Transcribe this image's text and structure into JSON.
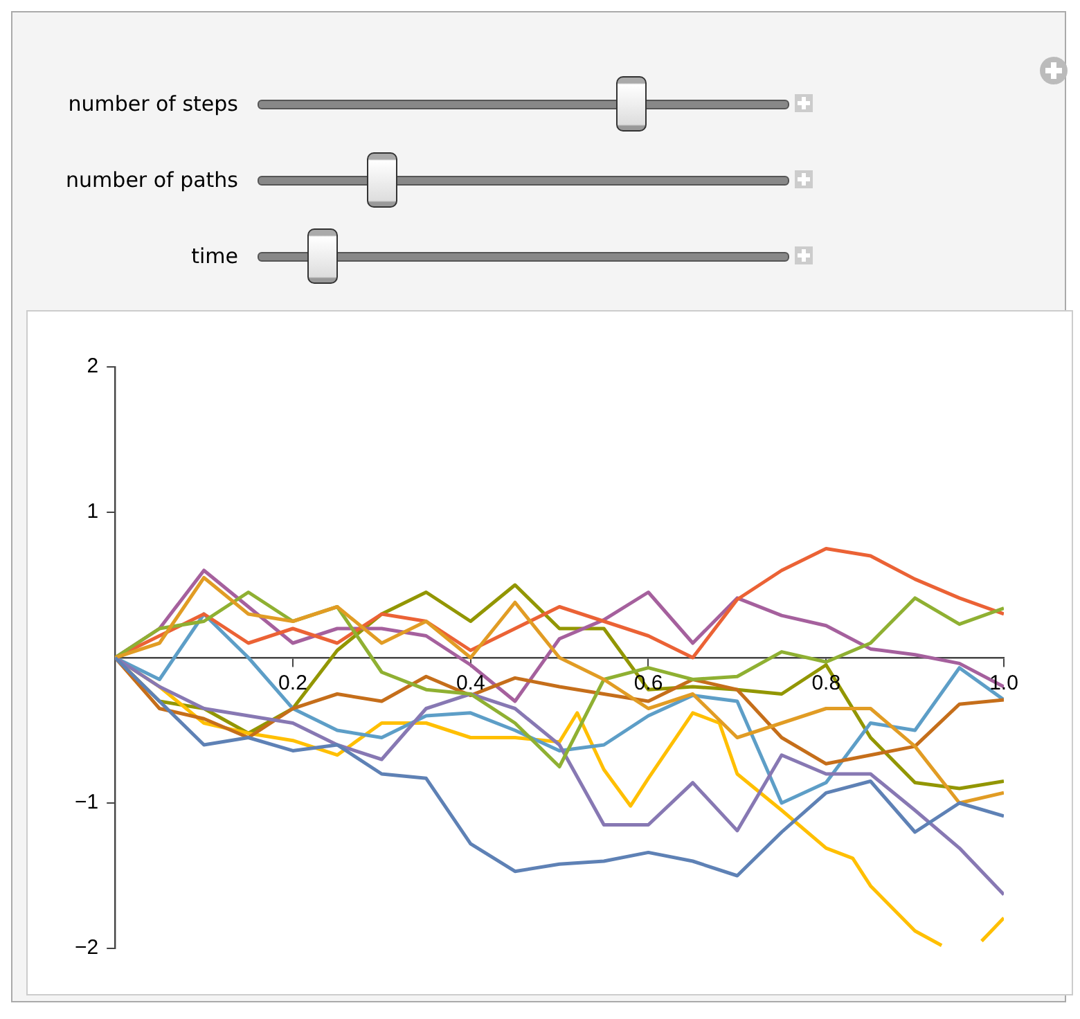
{
  "chart_data": {
    "type": "line",
    "annotations": [
      "number of steps",
      "number of paths",
      "time"
    ],
    "x": [
      0,
      0.05,
      0.1,
      0.15,
      0.2,
      0.25,
      0.3,
      0.35,
      0.4,
      0.45,
      0.5,
      0.55,
      0.6,
      0.65,
      0.7,
      0.75,
      0.8,
      0.85,
      0.9,
      0.95,
      1
    ],
    "xlim": [
      0,
      1
    ],
    "ylim": [
      -2,
      2
    ],
    "xticks": [
      0.2,
      0.4,
      0.6,
      0.8,
      {
        "value": 1,
        "label": "1.0"
      }
    ],
    "yticks": [
      {
        "value": -2,
        "label": "−2"
      },
      {
        "value": -1,
        "label": "−1"
      },
      1,
      2
    ],
    "grid": false,
    "legend": false,
    "series": [
      {
        "color": "#5e81b5",
        "values": [
          0,
          -0.3,
          -0.6,
          -0.55,
          -0.64,
          -0.6,
          -0.8,
          -0.83,
          -1.28,
          -1.47,
          -1.42,
          -1.4,
          -1.34,
          -1.4,
          -1.5,
          -1.2,
          -0.93,
          -0.85,
          -1.2,
          -1.0,
          -1.09
        ]
      },
      {
        "color": "#e19c24",
        "values": [
          0,
          0.1,
          0.55,
          0.3,
          0.25,
          0.35,
          0.1,
          0.25,
          0,
          0.38,
          0,
          -0.15,
          -0.35,
          -0.25,
          -0.55,
          -0.45,
          -0.35,
          -0.35,
          -0.61,
          -1.0,
          -0.93
        ]
      },
      {
        "color": "#8fb032",
        "values": [
          0,
          0.2,
          0.25,
          0.45,
          0.25,
          0.35,
          -0.1,
          -0.22,
          -0.25,
          -0.45,
          -0.75,
          -0.15,
          -0.07,
          -0.15,
          -0.13,
          0.04,
          -0.03,
          0.1,
          0.41,
          0.23,
          0.34
        ]
      },
      {
        "color": "#eb6235",
        "values": [
          0,
          0.15,
          0.3,
          0.1,
          0.2,
          0.1,
          0.3,
          0.25,
          0.05,
          0.2,
          0.35,
          0.25,
          0.15,
          0,
          0.4,
          0.6,
          0.75,
          0.7,
          0.54,
          0.41,
          0.3
        ]
      },
      {
        "color": "#8778b3",
        "values": [
          0,
          -0.2,
          -0.35,
          -0.4,
          -0.45,
          -0.6,
          -0.7,
          -0.35,
          -0.25,
          -0.35,
          -0.6,
          -1.15,
          -1.15,
          -0.86,
          -1.19,
          -0.67,
          -0.8,
          -0.8,
          -1.05,
          -1.31,
          -1.63
        ]
      },
      {
        "color": "#c56e1a",
        "values": [
          0,
          -0.35,
          -0.42,
          -0.55,
          -0.35,
          -0.25,
          -0.3,
          -0.13,
          -0.26,
          -0.14,
          -0.2,
          -0.25,
          -0.3,
          -0.15,
          -0.22,
          -0.55,
          -0.73,
          -0.67,
          -0.61,
          -0.32,
          -0.29
        ]
      },
      {
        "color": "#5d9ec7",
        "values": [
          0,
          -0.15,
          0.3,
          0,
          -0.35,
          -0.5,
          -0.55,
          -0.4,
          -0.38,
          -0.5,
          -0.64,
          -0.6,
          -0.4,
          -0.26,
          -0.3,
          -1.0,
          -0.86,
          -0.45,
          -0.5,
          -0.07,
          -0.29
        ]
      },
      {
        "color": "#ffbf00",
        "x": [
          0,
          0.05,
          0.1,
          0.15,
          0.2,
          0.25,
          0.3,
          0.35,
          0.4,
          0.45,
          0.5,
          0.52,
          0.55,
          0.58,
          0.6,
          0.65,
          0.68,
          0.7,
          0.75,
          0.8,
          0.83,
          0.85,
          0.9,
          0.93,
          0.95,
          0.975,
          1
        ],
        "values": [
          0,
          -0.2,
          -0.45,
          -0.52,
          -0.57,
          -0.67,
          -0.45,
          -0.45,
          -0.55,
          -0.55,
          -0.58,
          -0.38,
          -0.77,
          -1.02,
          -0.83,
          -0.38,
          -0.45,
          -0.8,
          -1.05,
          -1.31,
          -1.38,
          -1.57,
          -1.88,
          -1.98,
          null,
          -1.95,
          -1.79
        ]
      },
      {
        "color": "#a5609d",
        "values": [
          0,
          0.2,
          0.6,
          0.35,
          0.1,
          0.2,
          0.2,
          0.15,
          -0.05,
          -0.3,
          0.13,
          0.26,
          0.45,
          0.1,
          0.41,
          0.29,
          0.22,
          0.06,
          0.02,
          -0.04,
          -0.2
        ]
      },
      {
        "color": "#929600",
        "values": [
          0,
          -0.3,
          -0.35,
          -0.52,
          -0.35,
          0.05,
          0.3,
          0.45,
          0.25,
          0.5,
          0.2,
          0.2,
          -0.22,
          -0.2,
          -0.22,
          -0.25,
          -0.05,
          -0.55,
          -0.86,
          -0.9,
          -0.85
        ]
      }
    ]
  }
}
